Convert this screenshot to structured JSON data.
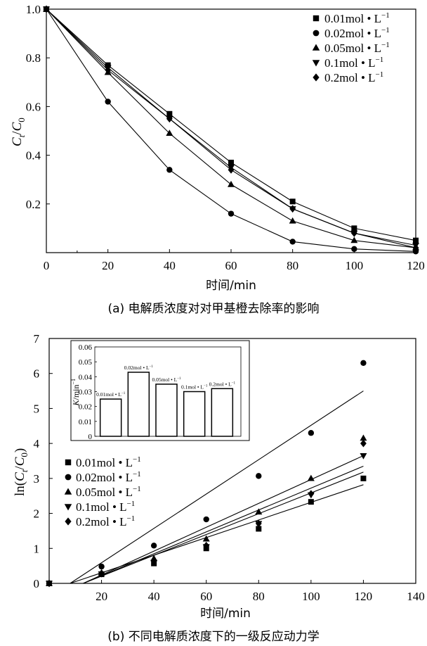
{
  "chart_data": [
    {
      "type": "line",
      "caption": "(a) 电解质浓度对对甲基橙去除率的影响",
      "xlabel": "时间/min",
      "ylabel_main": "C",
      "ylabel_sub1": "t",
      "ylabel_slash": "/",
      "ylabel_sub2": "0",
      "xlim": [
        0,
        120
      ],
      "ylim": [
        0,
        1.0
      ],
      "xticks": [
        0,
        20,
        40,
        60,
        80,
        100,
        120
      ],
      "yticks": [
        0.2,
        0.4,
        0.6,
        0.8,
        1.0
      ],
      "ytick_labels": [
        "0.2",
        "0.4",
        "0.6",
        "0.8",
        "1.0"
      ],
      "x": [
        0,
        20,
        40,
        60,
        80,
        100,
        120
      ],
      "legend_unit": " • L",
      "legend_exp": "−1",
      "series": [
        {
          "name": "0.01mol",
          "marker": "square",
          "values": [
            1.0,
            0.77,
            0.57,
            0.37,
            0.21,
            0.1,
            0.05
          ]
        },
        {
          "name": "0.02mol",
          "marker": "circle",
          "values": [
            1.0,
            0.62,
            0.34,
            0.16,
            0.045,
            0.015,
            0.005
          ]
        },
        {
          "name": "0.05mol",
          "marker": "triangle-up",
          "values": [
            1.0,
            0.74,
            0.49,
            0.28,
            0.13,
            0.05,
            0.02
          ]
        },
        {
          "name": "0.1mol",
          "marker": "triangle-down",
          "values": [
            1.0,
            0.76,
            0.55,
            0.35,
            0.18,
            0.08,
            0.03
          ]
        },
        {
          "name": "0.2mol",
          "marker": "diamond",
          "values": [
            1.0,
            0.75,
            0.55,
            0.34,
            0.18,
            0.08,
            0.02
          ]
        }
      ]
    },
    {
      "type": "scatter",
      "caption": "(b) 不同电解质浓度下的一级反应动力学",
      "xlabel": "时间/min",
      "ylabel_pre": "ln(",
      "ylabel_c": "C",
      "ylabel_sub1": "t",
      "ylabel_slash": "/",
      "ylabel_sub2": "0",
      "ylabel_post": ")",
      "xlim": [
        0,
        140
      ],
      "ylim": [
        0,
        7
      ],
      "xticks": [
        20,
        40,
        60,
        80,
        100,
        120,
        140
      ],
      "yticks": [
        0,
        1,
        2,
        3,
        4,
        5,
        6,
        7
      ],
      "x": [
        0,
        20,
        40,
        60,
        80,
        100,
        120
      ],
      "legend_unit": " • L",
      "legend_exp": "−1",
      "series": [
        {
          "name": "0.01mol",
          "marker": "square",
          "values": [
            0,
            0.26,
            0.57,
            1.0,
            1.56,
            2.33,
            3.0
          ],
          "fit": [
            [
              8,
              0
            ],
            [
              120,
              2.82
            ]
          ]
        },
        {
          "name": "0.02mol",
          "marker": "circle",
          "values": [
            0,
            0.48,
            1.08,
            1.83,
            3.07,
            4.3,
            6.3
          ],
          "fit": [
            [
              8,
              0
            ],
            [
              120,
              5.5
            ]
          ]
        },
        {
          "name": "0.05mol",
          "marker": "triangle-up",
          "values": [
            0,
            0.3,
            0.71,
            1.27,
            2.04,
            3.0,
            4.15
          ],
          "fit": [
            [
              13,
              0
            ],
            [
              120,
              3.35
            ]
          ]
        },
        {
          "name": "0.1mol",
          "marker": "triangle-down",
          "values": [
            0,
            0.27,
            0.6,
            1.05,
            1.71,
            2.53,
            3.65
          ],
          "fit": [
            [
              13,
              0
            ],
            [
              120,
              3.65
            ]
          ]
        },
        {
          "name": "0.2mol",
          "marker": "diamond",
          "values": [
            0,
            0.29,
            0.64,
            1.08,
            1.71,
            2.56,
            4.0
          ],
          "fit": [
            [
              13,
              0
            ],
            [
              120,
              3.18
            ]
          ]
        }
      ],
      "inset": {
        "type": "bar",
        "ylabel_k": "K",
        "ylabel_unit": "/min",
        "ylabel_exp": "−1",
        "ylim": [
          0,
          0.06
        ],
        "yticks": [
          0,
          0.01,
          0.02,
          0.03,
          0.04,
          0.05,
          0.06
        ],
        "ytick_labels": [
          "0",
          "0.01",
          "0.02",
          "0.03",
          "0.04",
          "0.05",
          "0.06"
        ],
        "categories": [
          "0.01mol • L",
          "0.02mol • L",
          "0.05mol • L",
          "0.1mol • L",
          "0.2mol • L"
        ],
        "category_exp": "−1",
        "values": [
          0.025,
          0.043,
          0.035,
          0.03,
          0.032
        ]
      }
    }
  ]
}
